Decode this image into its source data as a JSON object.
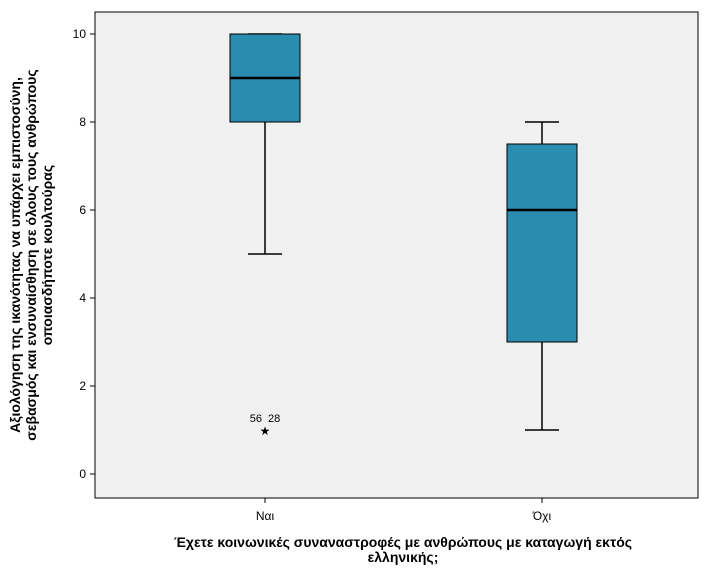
{
  "chart_data": {
    "type": "boxplot",
    "title": "",
    "xlabel_lines": [
      "Έχετε κοινωνικές συναναστροφές με ανθρώπους με καταγωγή εκτός",
      "ελληνικής;"
    ],
    "ylabel_lines": [
      "Αξιολόγηση της ικανότητας να υπάρχει εμπιστοσύνη,",
      "σεβασμός και ενσυναίσθηση σε όλους τους ανθρώπους",
      "οποιασδήποτε κουλτούρας"
    ],
    "ylim": [
      -0.5,
      10.5
    ],
    "yticks": [
      0,
      2,
      4,
      6,
      8,
      10
    ],
    "y_tick_labels": [
      "0",
      "2",
      "4",
      "6",
      "8",
      "10"
    ],
    "categories": [
      "Ναι",
      "Όχι"
    ],
    "boxes": [
      {
        "category": "Ναι",
        "whisker_low": 5,
        "q1": 8,
        "median": 9,
        "q3": 10,
        "whisker_high": 10,
        "outliers": [
          {
            "value": 1,
            "label": "56  28",
            "marker": "★"
          }
        ]
      },
      {
        "category": "Όχι",
        "whisker_low": 1,
        "q1": 3,
        "median": 6,
        "q3": 7.5,
        "whisker_high": 8,
        "outliers": []
      }
    ],
    "colors": {
      "box_fill": "#2a8cae",
      "plot_background": "#f0f0f0",
      "line": "#000000"
    },
    "grid": false,
    "legend": "none"
  }
}
